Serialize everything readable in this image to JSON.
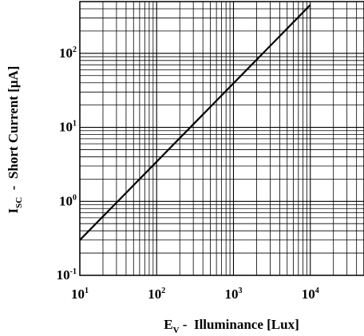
{
  "chart_data": {
    "type": "line",
    "x_scale": "log",
    "y_scale": "log",
    "xlim": [
      10,
      50000
    ],
    "ylim": [
      0.1,
      500
    ],
    "grid": true,
    "x_ticks": [
      {
        "base": "10",
        "exp": "1",
        "value": 10
      },
      {
        "base": "10",
        "exp": "2",
        "value": 100
      },
      {
        "base": "10",
        "exp": "3",
        "value": 1000
      },
      {
        "base": "10",
        "exp": "4",
        "value": 10000
      }
    ],
    "y_ticks": [
      {
        "base": "10",
        "exp": "-1",
        "value": 0.1
      },
      {
        "base": "10",
        "exp": "0",
        "value": 1
      },
      {
        "base": "10",
        "exp": "1",
        "value": 10
      },
      {
        "base": "10",
        "exp": "2",
        "value": 100
      }
    ],
    "xlabel": {
      "main": "E",
      "sub": "V",
      "rest": " -  Illuminance [Lux]"
    },
    "ylabel": {
      "main": "I",
      "sub": "SC",
      "rest": "  -  Short Current [μA]"
    },
    "series": [
      {
        "x": [
          10,
          10000
        ],
        "y": [
          0.3,
          450
        ]
      }
    ],
    "colors": {
      "line": "#000000",
      "grid": "#000000"
    }
  }
}
